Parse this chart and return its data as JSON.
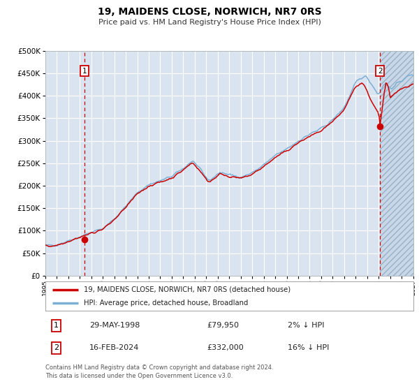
{
  "title": "19, MAIDENS CLOSE, NORWICH, NR7 0RS",
  "subtitle": "Price paid vs. HM Land Registry's House Price Index (HPI)",
  "legend_line1": "19, MAIDENS CLOSE, NORWICH, NR7 0RS (detached house)",
  "legend_line2": "HPI: Average price, detached house, Broadland",
  "point1_date": "29-MAY-1998",
  "point1_price": 79950,
  "point1_hpi": "2% ↓ HPI",
  "point1_year": 1998.41,
  "point2_date": "16-FEB-2024",
  "point2_price": 332000,
  "point2_hpi": "16% ↓ HPI",
  "point2_year": 2024.12,
  "ylim": [
    0,
    500000
  ],
  "xlim_start": 1995.0,
  "xlim_end": 2027.0,
  "bg_color": "#dae4f0",
  "grid_color": "#ffffff",
  "hpi_line_color": "#7bafd4",
  "price_line_color": "#cc0000",
  "point_color": "#cc0000",
  "vline_color": "#cc0000",
  "footnote": "Contains HM Land Registry data © Crown copyright and database right 2024.\nThis data is licensed under the Open Government Licence v3.0.",
  "future_start": 2024.12,
  "hatch_bg": "#c8d8e8"
}
